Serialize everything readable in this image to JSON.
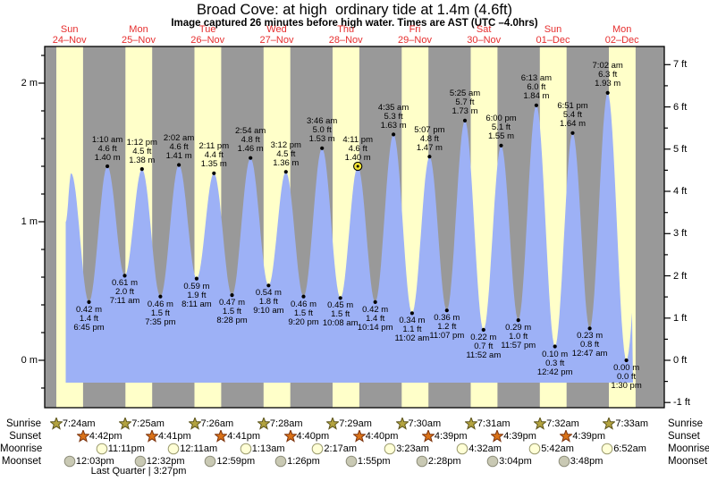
{
  "title": "Broad Cove: at high  ordinary tide at 1.4m (4.6ft)",
  "subtitle": "Image captured 26 minutes before high water. Times are AST (UTC –4.0hrs)",
  "chart_data": {
    "type": "area",
    "title": "Broad Cove: at high  ordinary tide at 1.4m (4.6ft)",
    "subtitle": "Image captured 26 minutes before high water. Times are AST (UTC –4.0hrs)",
    "timezone_note": "Times are AST (UTC –4.0hrs)",
    "days": [
      {
        "name": "Sun",
        "date": "24–Nov"
      },
      {
        "name": "Mon",
        "date": "25–Nov"
      },
      {
        "name": "Tue",
        "date": "26–Nov"
      },
      {
        "name": "Wed",
        "date": "27–Nov"
      },
      {
        "name": "Thu",
        "date": "28–Nov"
      },
      {
        "name": "Fri",
        "date": "29–Nov"
      },
      {
        "name": "Sat",
        "date": "30–Nov"
      },
      {
        "name": "Sun",
        "date": "01–Dec"
      },
      {
        "name": "Mon",
        "date": "02–Dec"
      }
    ],
    "y_axis_left": {
      "unit": "m",
      "values": [
        0,
        1,
        2
      ],
      "labels": [
        "0 m",
        "1 m",
        "2 m"
      ]
    },
    "y_axis_right": {
      "unit": "ft",
      "values": [
        -1,
        0,
        1,
        2,
        3,
        4,
        5,
        6,
        7
      ],
      "labels": [
        "-1 ft",
        "0 ft",
        "1 ft",
        "2 ft",
        "3 ft",
        "4 ft",
        "5 ft",
        "6 ft",
        "7 ft"
      ]
    },
    "ylim_m": [
      -0.34,
      2.26
    ],
    "grid": false,
    "tide_events": [
      {
        "kind": "low",
        "day": 0,
        "time": "6:45 pm",
        "m": "0.42",
        "ft": "1.4"
      },
      {
        "kind": "high",
        "day": 1,
        "time": "1:10 am",
        "m": "1.40",
        "ft": "4.6"
      },
      {
        "kind": "low",
        "day": 1,
        "time": "7:11 am",
        "m": "0.61",
        "ft": "2.0"
      },
      {
        "kind": "high",
        "day": 1,
        "time": "1:12 pm",
        "m": "1.38",
        "ft": "4.5"
      },
      {
        "kind": "low",
        "day": 1,
        "time": "7:35 pm",
        "m": "0.46",
        "ft": "1.5"
      },
      {
        "kind": "high",
        "day": 2,
        "time": "2:02 am",
        "m": "1.41",
        "ft": "4.6"
      },
      {
        "kind": "low",
        "day": 2,
        "time": "8:11 am",
        "m": "0.59",
        "ft": "1.9"
      },
      {
        "kind": "high",
        "day": 2,
        "time": "2:11 pm",
        "m": "1.35",
        "ft": "4.4"
      },
      {
        "kind": "low",
        "day": 2,
        "time": "8:28 pm",
        "m": "0.47",
        "ft": "1.5"
      },
      {
        "kind": "high",
        "day": 3,
        "time": "2:54 am",
        "m": "1.46",
        "ft": "4.8"
      },
      {
        "kind": "low",
        "day": 3,
        "time": "9:10 am",
        "m": "0.54",
        "ft": "1.8"
      },
      {
        "kind": "high",
        "day": 3,
        "time": "3:12 pm",
        "m": "1.36",
        "ft": "4.5"
      },
      {
        "kind": "low",
        "day": 3,
        "time": "9:20 pm",
        "m": "0.46",
        "ft": "1.5"
      },
      {
        "kind": "high",
        "day": 4,
        "time": "3:46 am",
        "m": "1.53",
        "ft": "5.0"
      },
      {
        "kind": "low",
        "day": 4,
        "time": "10:08 am",
        "m": "0.45",
        "ft": "1.5"
      },
      {
        "kind": "high",
        "day": 4,
        "time": "4:11 pm",
        "m": "1.40",
        "ft": "4.6",
        "current": true
      },
      {
        "kind": "low",
        "day": 4,
        "time": "10:14 pm",
        "m": "0.42",
        "ft": "1.4"
      },
      {
        "kind": "high",
        "day": 5,
        "time": "4:35 am",
        "m": "1.63",
        "ft": "5.3"
      },
      {
        "kind": "low",
        "day": 5,
        "time": "11:02 am",
        "m": "0.34",
        "ft": "1.1"
      },
      {
        "kind": "high",
        "day": 5,
        "time": "5:07 pm",
        "m": "1.47",
        "ft": "4.8"
      },
      {
        "kind": "low",
        "day": 5,
        "time": "11:07 pm",
        "m": "0.36",
        "ft": "1.2"
      },
      {
        "kind": "high",
        "day": 6,
        "time": "5:25 am",
        "m": "1.73",
        "ft": "5.7"
      },
      {
        "kind": "low",
        "day": 6,
        "time": "11:52 am",
        "m": "0.22",
        "ft": "0.7"
      },
      {
        "kind": "high",
        "day": 6,
        "time": "6:00 pm",
        "m": "1.55",
        "ft": "5.1"
      },
      {
        "kind": "low",
        "day": 6,
        "time": "11:57 pm",
        "m": "0.29",
        "ft": "1.0"
      },
      {
        "kind": "high",
        "day": 7,
        "time": "6:13 am",
        "m": "1.84",
        "ft": "6.0"
      },
      {
        "kind": "low",
        "day": 7,
        "time": "12:42 pm",
        "m": "0.10",
        "ft": "0.3"
      },
      {
        "kind": "high",
        "day": 7,
        "time": "6:51 pm",
        "m": "1.64",
        "ft": "5.4"
      },
      {
        "kind": "low",
        "day": 8,
        "time": "12:47 am",
        "m": "0.23",
        "ft": "0.8"
      },
      {
        "kind": "high",
        "day": 8,
        "time": "7:02 am",
        "m": "1.93",
        "ft": "6.3"
      },
      {
        "kind": "low",
        "day": 8,
        "time": "1:30 pm",
        "m": "0.00",
        "ft": "0.0"
      }
    ],
    "colors": {
      "night_band": "#999999",
      "day_band": "#ffffc9",
      "water": "#9db1f6",
      "day_label_red": "#e62e2e",
      "current_marker": "#f3e433",
      "dot": "#000000"
    }
  },
  "sun_moon": {
    "rows": [
      {
        "label": "Sunrise",
        "icon": "sunrise-star",
        "entries": [
          {
            "day": 0,
            "time": "7:24am"
          },
          {
            "day": 1,
            "time": "7:25am"
          },
          {
            "day": 2,
            "time": "7:26am"
          },
          {
            "day": 3,
            "time": "7:28am"
          },
          {
            "day": 4,
            "time": "7:29am"
          },
          {
            "day": 5,
            "time": "7:30am"
          },
          {
            "day": 6,
            "time": "7:31am"
          },
          {
            "day": 7,
            "time": "7:32am"
          },
          {
            "day": 8,
            "time": "7:33am"
          }
        ]
      },
      {
        "label": "Sunset",
        "icon": "sunset-star",
        "entries": [
          {
            "day": 0,
            "time": "4:42pm"
          },
          {
            "day": 1,
            "time": "4:41pm"
          },
          {
            "day": 2,
            "time": "4:41pm"
          },
          {
            "day": 3,
            "time": "4:40pm"
          },
          {
            "day": 4,
            "time": "4:40pm"
          },
          {
            "day": 5,
            "time": "4:39pm"
          },
          {
            "day": 6,
            "time": "4:39pm"
          },
          {
            "day": 7,
            "time": "4:39pm"
          }
        ]
      },
      {
        "label": "Moonrise",
        "icon": "moonrise-circle",
        "entries": [
          {
            "day": 0,
            "time": "11:11pm"
          },
          {
            "day": 2,
            "time": "12:11am"
          },
          {
            "day": 3,
            "time": "1:13am"
          },
          {
            "day": 4,
            "time": "2:17am"
          },
          {
            "day": 5,
            "time": "3:23am"
          },
          {
            "day": 6,
            "time": "4:32am"
          },
          {
            "day": 7,
            "time": "5:42am"
          },
          {
            "day": 8,
            "time": "6:52am"
          }
        ]
      },
      {
        "label": "Moonset",
        "icon": "moonset-circle",
        "entries": [
          {
            "day": 0,
            "time": "12:03pm"
          },
          {
            "day": 1,
            "time": "12:32pm"
          },
          {
            "day": 2,
            "time": "12:59pm"
          },
          {
            "day": 3,
            "time": "1:26pm"
          },
          {
            "day": 4,
            "time": "1:55pm"
          },
          {
            "day": 5,
            "time": "2:28pm"
          },
          {
            "day": 6,
            "time": "3:04pm"
          },
          {
            "day": 7,
            "time": "3:48pm"
          }
        ]
      }
    ],
    "icon_colors": {
      "sunrise_fill": "#b3a33f",
      "sunrise_stroke": "#5c541c",
      "sunset_fill": "#da7218",
      "sunset_stroke": "#7c340e",
      "moonrise_fill": "#ffffd6",
      "moonrise_stroke": "#9a9a6e",
      "moonset_fill": "#c9c9b4",
      "moonset_stroke": "#8d8d7a"
    },
    "note": "Last Quarter | 3:27pm"
  }
}
